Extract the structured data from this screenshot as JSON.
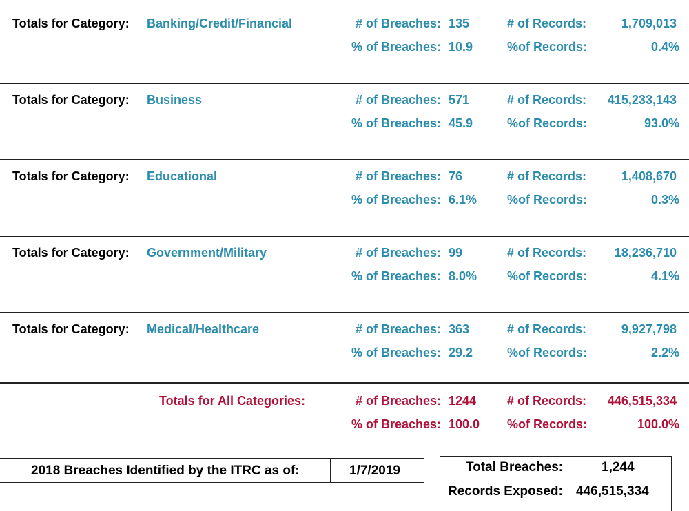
{
  "colors": {
    "category": "#2b8cad",
    "totals": "#b0123a"
  },
  "labels": {
    "totals_for_category": "Totals for Category:",
    "num_breaches": "# of Breaches:",
    "pct_breaches": "% of Breaches:",
    "num_records": "# of Records:",
    "pct_records": "%of Records:"
  },
  "categories": [
    {
      "name": "Banking/Credit/Financial",
      "breaches": "135",
      "pct_breaches": "10.9",
      "records": "1,709,013",
      "pct_records": "0.4%"
    },
    {
      "name": "Business",
      "breaches": "571",
      "pct_breaches": "45.9",
      "records": "415,233,143",
      "pct_records": "93.0%"
    },
    {
      "name": "Educational",
      "breaches": "76",
      "pct_breaches": "6.1%",
      "records": "1,408,670",
      "pct_records": "0.3%"
    },
    {
      "name": "Government/Military",
      "breaches": "99",
      "pct_breaches": "8.0%",
      "records": "18,236,710",
      "pct_records": "4.1%"
    },
    {
      "name": "Medical/Healthcare",
      "breaches": "363",
      "pct_breaches": "29.2",
      "records": "9,927,798",
      "pct_records": "2.2%"
    }
  ],
  "all_totals": {
    "label": "Totals for All Categories:",
    "breaches": "1244",
    "pct_breaches": "100.0",
    "records": "446,515,334",
    "pct_records": "100.0%"
  },
  "footer": {
    "identified_label": "2018 Breaches Identified by the ITRC as of:",
    "date": "1/7/2019",
    "total_breaches_label": "Total Breaches:",
    "total_breaches_value": "1,244",
    "records_exposed_label": "Records Exposed:",
    "records_exposed_value": "446,515,334"
  }
}
